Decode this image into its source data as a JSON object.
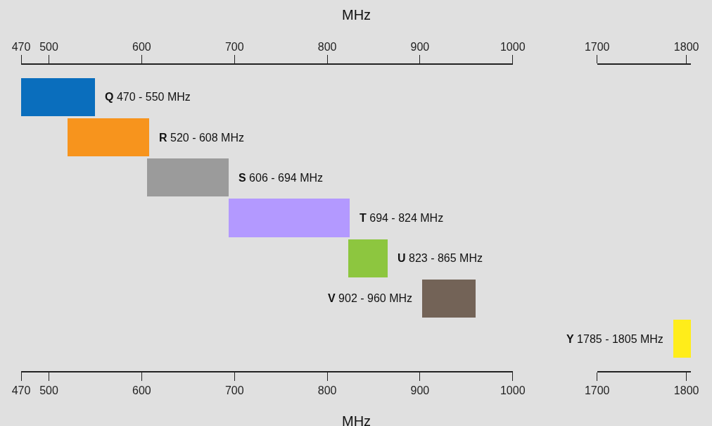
{
  "chart_data": [
    {
      "type": "bar",
      "orientation": "horizontal",
      "x2label": "MHz",
      "xlabel": "MHz",
      "tick_labels": "x",
      "categories": [
        null,
        null,
        null,
        null,
        null,
        null,
        null
      ],
      "base": [
        470,
        520,
        606,
        694,
        823,
        902,
        null
      ],
      "values": [
        80,
        88,
        88,
        130,
        42,
        58,
        null
      ],
      "colors": [
        "#0a6ebd",
        "#f7941d",
        "#9b9b9b",
        "#b399ff",
        "#8dc63f",
        "#736357",
        "#ffed1a"
      ],
      "value_labels": [
        "Q 470 - 550 MHz",
        "R 520 - 608 MHz",
        "S 606 - 694 MHz",
        "T 694 - 824 MHz",
        "U 823 - 865 MHz",
        "V 902 - 960 MHz",
        null
      ],
      "xlim": [
        470,
        1000
      ],
      "xticks": [
        470,
        500,
        600,
        700,
        800,
        900,
        1000
      ],
      "x2lim": [
        470,
        1000
      ],
      "x2ticks": [
        470,
        500,
        600,
        700,
        800,
        900,
        1000
      ]
    },
    {
      "type": "bar",
      "orientation": "horizontal",
      "tick_labels": "x",
      "categories": [
        null,
        null,
        null,
        null,
        null,
        null,
        null
      ],
      "base": [
        null,
        null,
        null,
        null,
        null,
        null,
        1785
      ],
      "values": [
        null,
        null,
        null,
        null,
        null,
        null,
        20
      ],
      "colors": [
        "#0a6ebd",
        "#f7941d",
        "#9b9b9b",
        "#b399ff",
        "#8dc63f",
        "#736357",
        "#ffed1a"
      ],
      "value_labels": [
        null,
        null,
        null,
        null,
        null,
        null,
        "Y 1785 - 1805 MHz"
      ],
      "xlim": [
        1700,
        1805
      ],
      "xticks": [
        1700,
        1800
      ],
      "x2lim": [
        1700,
        1805
      ],
      "x2ticks": [
        1700,
        1800
      ]
    }
  ]
}
